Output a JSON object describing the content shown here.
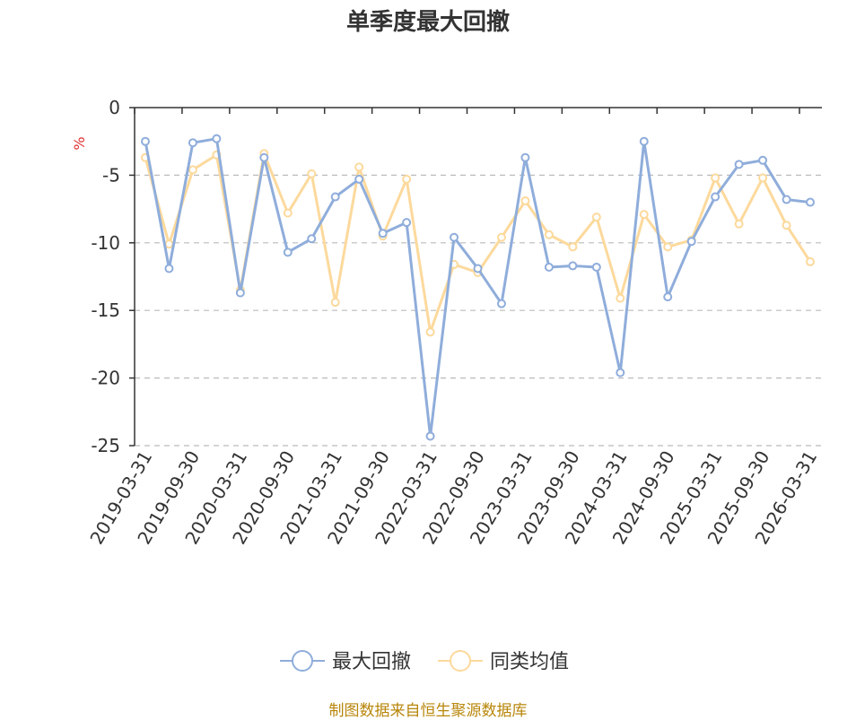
{
  "chart_data": {
    "type": "line",
    "title": "单季度最大回撤",
    "ylabel": "%",
    "xlabel": "",
    "ylim": [
      -25,
      0
    ],
    "yticks": [
      0,
      -5,
      -10,
      -15,
      -20,
      -25
    ],
    "grid": true,
    "legend_position": "bottom",
    "x_tick_labels": [
      "2019-03-31",
      "2019-09-30",
      "2020-03-31",
      "2020-09-30",
      "2021-03-31",
      "2021-09-30",
      "2022-03-31",
      "2022-09-30",
      "2023-03-31",
      "2023-09-30",
      "2024-03-31",
      "2024-09-30",
      "2025-03-31",
      "2025-09-30",
      "2026-03-31"
    ],
    "categories": [
      "2019-03-31",
      "2019-06-30",
      "2019-09-30",
      "2019-12-31",
      "2020-03-31",
      "2020-06-30",
      "2020-09-30",
      "2020-12-31",
      "2021-03-31",
      "2021-06-30",
      "2021-09-30",
      "2021-12-31",
      "2022-03-31",
      "2022-06-30",
      "2022-09-30",
      "2022-12-31",
      "2023-03-31",
      "2023-06-30",
      "2023-09-30",
      "2023-12-31",
      "2024-03-31",
      "2024-06-30",
      "2024-09-30",
      "2024-12-31",
      "2025-03-31",
      "2025-06-30",
      "2025-09-30",
      "2025-12-31",
      "2026-03-31"
    ],
    "series": [
      {
        "name": "最大回撤",
        "color": "#8faddb",
        "values": [
          -2.5,
          -11.9,
          -2.6,
          -2.3,
          -13.7,
          -3.7,
          -10.7,
          -9.7,
          -6.6,
          -5.3,
          -9.3,
          -8.5,
          -24.3,
          -9.6,
          -11.9,
          -14.5,
          -3.7,
          -11.8,
          -11.7,
          -11.8,
          -19.6,
          -2.5,
          -14.0,
          -9.9,
          -6.6,
          -4.2,
          -3.9,
          -6.8,
          -7.0
        ]
      },
      {
        "name": "同类均值",
        "color": "#fcd99c",
        "values": [
          -3.7,
          -10.1,
          -4.6,
          -3.5,
          -13.5,
          -3.4,
          -7.8,
          -4.9,
          -14.4,
          -4.4,
          -9.5,
          -5.3,
          -16.6,
          -11.6,
          -12.2,
          -9.6,
          -6.9,
          -9.4,
          -10.3,
          -8.1,
          -14.1,
          -7.9,
          -10.3,
          -9.8,
          -5.2,
          -8.6,
          -5.2,
          -8.7,
          -11.4
        ]
      }
    ]
  },
  "footer": {
    "source": "制图数据来自恒生聚源数据库"
  }
}
